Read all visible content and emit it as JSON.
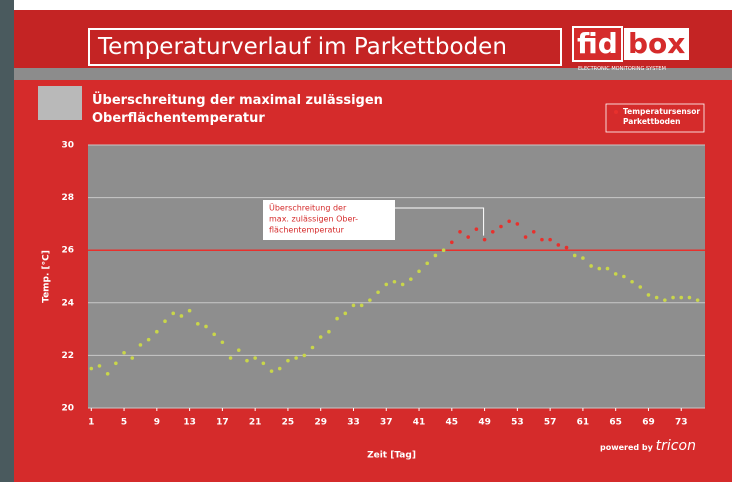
{
  "header": {
    "title": "Temperaturverlauf im Parkettboden",
    "logo": {
      "part1": "fid",
      "part2": "box",
      "tagline": "ELECTRONIC MONITORING SYSTEM"
    },
    "subtitle": "Überschreitung der maximal zulässigen Oberflächentemperatur"
  },
  "footer": {
    "powered": "powered by",
    "brand": "tricon"
  },
  "chart_data": {
    "type": "scatter",
    "x": [
      1,
      2,
      3,
      4,
      5,
      6,
      7,
      8,
      9,
      10,
      11,
      12,
      13,
      14,
      15,
      16,
      17,
      18,
      19,
      20,
      21,
      22,
      23,
      24,
      25,
      26,
      27,
      28,
      29,
      30,
      31,
      32,
      33,
      34,
      35,
      36,
      37,
      38,
      39,
      40,
      41,
      42,
      43,
      44,
      45,
      46,
      47,
      48,
      49,
      50,
      51,
      52,
      53,
      54,
      55,
      56,
      57,
      58,
      59,
      60,
      61,
      62,
      63,
      64,
      65,
      66,
      67,
      68,
      69,
      70,
      71,
      72,
      73,
      74,
      75
    ],
    "series": [
      {
        "name": "Temperatursensor Parkettboden",
        "color": "#e8302c",
        "below_color": "#c9d64a",
        "values": [
          21.5,
          21.6,
          21.3,
          21.7,
          22.1,
          21.9,
          22.4,
          22.6,
          22.9,
          23.3,
          23.6,
          23.5,
          23.7,
          23.2,
          23.1,
          22.8,
          22.5,
          21.9,
          22.2,
          21.8,
          21.9,
          21.7,
          21.4,
          21.5,
          21.8,
          21.9,
          22.0,
          22.3,
          22.7,
          22.9,
          23.4,
          23.6,
          23.9,
          23.9,
          24.1,
          24.4,
          24.7,
          24.8,
          24.7,
          24.9,
          25.2,
          25.5,
          25.8,
          26.0,
          26.3,
          26.7,
          26.5,
          26.8,
          26.4,
          26.7,
          26.9,
          27.1,
          27.0,
          26.5,
          26.7,
          26.4,
          26.4,
          26.2,
          26.1,
          25.8,
          25.7,
          25.4,
          25.3,
          25.3,
          25.1,
          25.0,
          24.8,
          24.6,
          24.3,
          24.2,
          24.1,
          24.2,
          24.2,
          24.2,
          24.1
        ]
      }
    ],
    "threshold": 26,
    "threshold_color": "#e8302c",
    "annotation": {
      "lines": [
        "Überschreitung der",
        "max. zulässigen Ober-",
        "flächentemperatur"
      ],
      "x": 49,
      "y": 26.4
    },
    "xlabel": "Zeit [Tag]",
    "ylabel": "Temp. [°C]",
    "xlim": [
      0.6,
      75.9
    ],
    "ylim": [
      20,
      30
    ],
    "xticks": [
      1,
      5,
      9,
      13,
      17,
      21,
      25,
      29,
      33,
      37,
      41,
      45,
      49,
      53,
      57,
      61,
      65,
      69,
      73
    ],
    "yticks": [
      20,
      22,
      24,
      26,
      28,
      30
    ],
    "grid": true
  }
}
